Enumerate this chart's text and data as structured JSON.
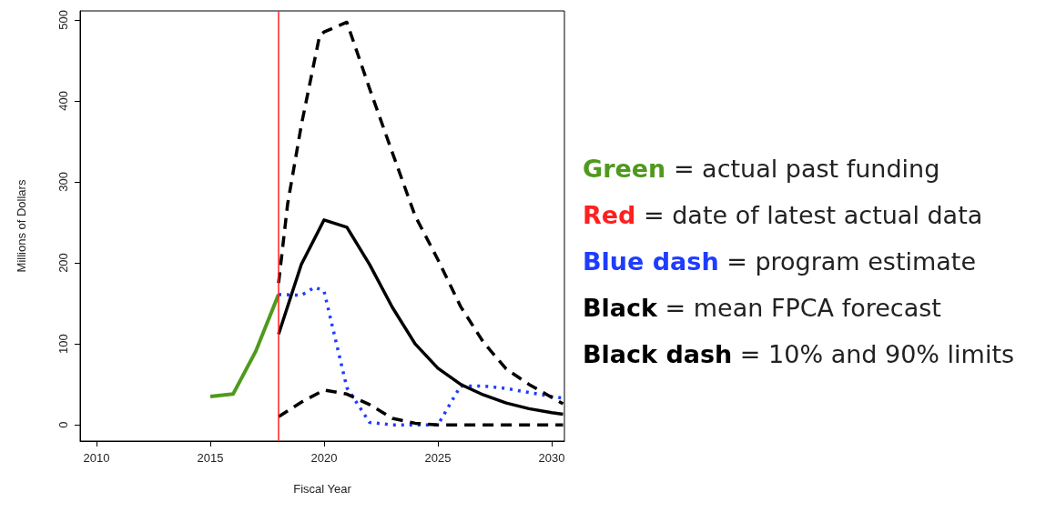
{
  "chart_data": {
    "type": "line",
    "xlabel": "Fiscal Year",
    "ylabel": "Millions of Dollars",
    "xlim": [
      2009.28,
      2030.56
    ],
    "xticks": [
      2010,
      2015,
      2020,
      2025,
      2030
    ],
    "ylim": [
      -20,
      511
    ],
    "yticks": [
      0,
      100,
      200,
      300,
      400,
      500
    ],
    "grid": false,
    "marker": "none",
    "series": [
      {
        "color": "#4f9a1c",
        "line_style": "solid",
        "x": [
          2015,
          2016,
          2017,
          2018
        ],
        "values": [
          35,
          38,
          91,
          161
        ]
      },
      {
        "color": "#1f3cff",
        "line_style": "dotted",
        "x": [
          2018,
          2019,
          2019.6,
          2020,
          2021,
          2022,
          2023,
          2024,
          2025,
          2026,
          2027,
          2028,
          2029,
          2030,
          2030.5
        ],
        "values": [
          161,
          160,
          170,
          165,
          46,
          3,
          0,
          0,
          0,
          48,
          48,
          45,
          40,
          35,
          33
        ]
      },
      {
        "color": "#000000",
        "line_style": "solid",
        "x": [
          2018,
          2019,
          2020,
          2021,
          2022,
          2023,
          2024,
          2025,
          2026,
          2027,
          2028,
          2029,
          2030,
          2030.5
        ],
        "values": [
          112,
          198,
          253,
          244,
          198,
          145,
          100,
          70,
          50,
          37,
          27,
          20,
          15,
          13
        ]
      },
      {
        "color": "#000000",
        "line_style": "dashed",
        "x": [
          2018,
          2018.4,
          2019,
          2019.8,
          2020,
          2021,
          2022,
          2023,
          2024,
          2025,
          2026,
          2027,
          2028,
          2029,
          2030,
          2030.5
        ],
        "values": [
          175,
          273,
          370,
          480,
          485,
          497,
          415,
          336,
          258,
          204,
          146,
          102,
          69,
          50,
          34,
          26
        ]
      },
      {
        "color": "#000000",
        "line_style": "dashed",
        "x": [
          2018,
          2019,
          2020,
          2021,
          2022,
          2023,
          2024,
          2025,
          2026,
          2027,
          2028,
          2029,
          2030,
          2030.5
        ],
        "values": [
          10,
          28,
          43,
          38,
          25,
          8,
          2,
          0,
          0,
          0,
          0,
          0,
          0,
          0
        ]
      }
    ],
    "ref_lines": [
      {
        "axis": "x",
        "value": 2018,
        "color": "#ff2020"
      }
    ],
    "annotations": [
      "Green = actual past funding",
      "Red = date of latest actual data",
      "Blue dash = program estimate",
      "Black = mean FPCA forecast",
      "Black dash = 10% and 90% limits"
    ]
  }
}
